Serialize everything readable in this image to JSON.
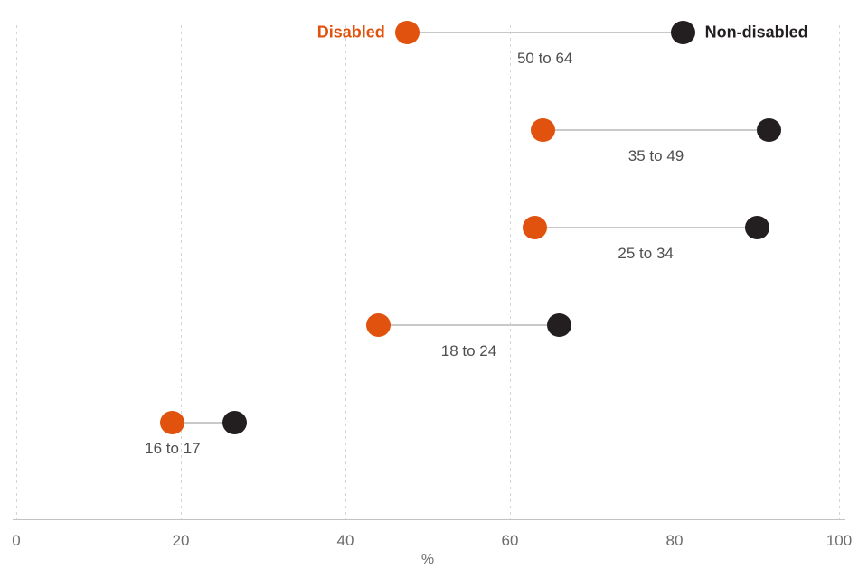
{
  "chart_data": {
    "type": "scatter",
    "variant": "dumbbell",
    "title": "",
    "xlabel": "%",
    "ylabel": "",
    "xlim": [
      0,
      100
    ],
    "xticks": [
      0,
      20,
      40,
      60,
      80,
      100
    ],
    "grid": "vertical-dashed",
    "legend_position": "inline-first-row",
    "categories": [
      "50 to 64",
      "35 to 49",
      "25 to 34",
      "18 to 24",
      "16 to 17"
    ],
    "series": [
      {
        "name": "Disabled",
        "color": "#E0520D",
        "values": [
          47.5,
          64,
          63,
          44,
          19
        ]
      },
      {
        "name": "Non-disabled",
        "color": "#231F20",
        "values": [
          81,
          91.5,
          90,
          66,
          26.5
        ]
      }
    ],
    "connector_color": "#c9c9c9"
  }
}
